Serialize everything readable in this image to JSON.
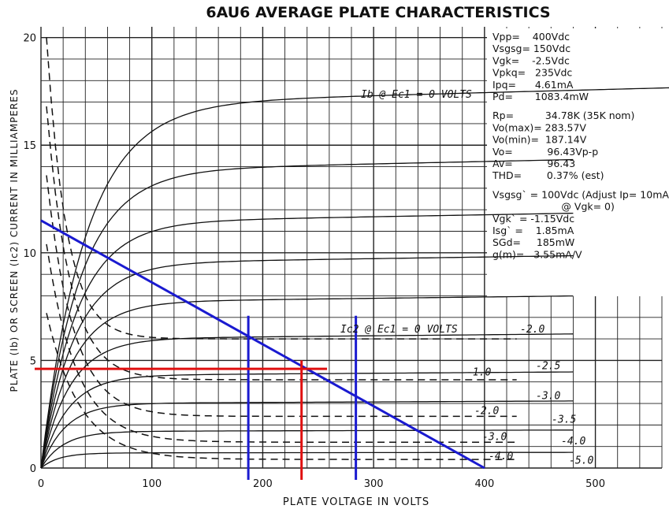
{
  "chart_data": {
    "type": "line",
    "title": "6AU6 AVERAGE PLATE CHARACTERISTICS",
    "xlabel": "PLATE VOLTAGE IN VOLTS",
    "ylabel": "PLATE (Ib) OR SCREEN (Ic2) CURRENT IN MILLIAMPERES",
    "xlim": [
      0,
      560
    ],
    "ylim": [
      0,
      20.5
    ],
    "x_ticks": [
      0,
      100,
      200,
      300,
      400,
      500
    ],
    "y_ticks": [
      0,
      5,
      10,
      15,
      20
    ],
    "grid": true,
    "plate_curves": [
      {
        "grid_v": 0.0,
        "label": "Ib @ Ec1 = 0 VOLTS",
        "sat_ma": 16.9,
        "knee_v": 40
      },
      {
        "grid_v": -0.5,
        "sat_ma": 13.8,
        "knee_v": 35
      },
      {
        "grid_v": -1.0,
        "sat_ma": 11.4,
        "knee_v": 32
      },
      {
        "grid_v": -1.5,
        "sat_ma": 9.5,
        "knee_v": 30
      },
      {
        "grid_v": -2.0,
        "sat_ma": 7.7,
        "knee_v": 28
      },
      {
        "grid_v": -2.5,
        "sat_ma": 6.0,
        "knee_v": 26
      },
      {
        "grid_v": -3.0,
        "sat_ma": 4.3,
        "knee_v": 24
      },
      {
        "grid_v": -3.5,
        "sat_ma": 3.0,
        "knee_v": 22
      },
      {
        "grid_v": -4.0,
        "sat_ma": 1.7,
        "knee_v": 20
      },
      {
        "grid_v": -5.0,
        "sat_ma": 0.7,
        "knee_v": 16
      }
    ],
    "screen_curves": [
      {
        "grid_v": 0.0,
        "label": "Ic2 @ Ec1 = 0 VOLTS",
        "end_ma": 6.0
      },
      {
        "grid_v": -1.0,
        "end_ma": 4.1
      },
      {
        "grid_v": -2.0,
        "end_ma": 2.4
      },
      {
        "grid_v": -3.0,
        "end_ma": 1.2
      },
      {
        "grid_v": -4.0,
        "end_ma": 0.4
      }
    ],
    "curve_labels": [
      "-2.0",
      "-2.5",
      "-1.0",
      "-3.0",
      "-2.0",
      "-3.5",
      "-3.0",
      "-4.0",
      "-4.0",
      "-5.0"
    ],
    "load_line": {
      "from": [
        0,
        11.5
      ],
      "to": [
        400,
        0
      ],
      "color": "#1a1ad0"
    },
    "operating_point": {
      "x": 235,
      "y": 4.61,
      "color": "#e01010"
    },
    "swing_lines": [
      {
        "x": 187,
        "color": "#1a1ad0"
      },
      {
        "x": 284,
        "color": "#1a1ad0"
      }
    ]
  },
  "specs": {
    "lines": [
      "Vpp=    400Vdc",
      "Vsgsg= 150Vdc",
      "Vgk=    -2.5Vdc",
      "Vpkq=   235Vdc",
      "Ipq=      4.61mA",
      "Pd=       1083.4mW",
      "",
      "Rp=          34.78K (35K nom)",
      "Vo(max)= 283.57V",
      "Vo(min)=  187.14V",
      "Vo=           96.43Vp-p",
      "Av=           96.43",
      "THD=        0.37% (est)",
      "",
      "Vsgsg` = 100Vdc (Adjust Ip= 10mA",
      "                      @ Vgk= 0)",
      "Vgk` = -1.15Vdc",
      "Isg` =    1.85mA",
      "SGd=     185mW",
      "g(m)=   3.55mA/V"
    ]
  },
  "colors": {
    "ink": "#111111",
    "grid": "#222222",
    "load_line": "#1a1ad0",
    "op_point": "#e01010"
  }
}
